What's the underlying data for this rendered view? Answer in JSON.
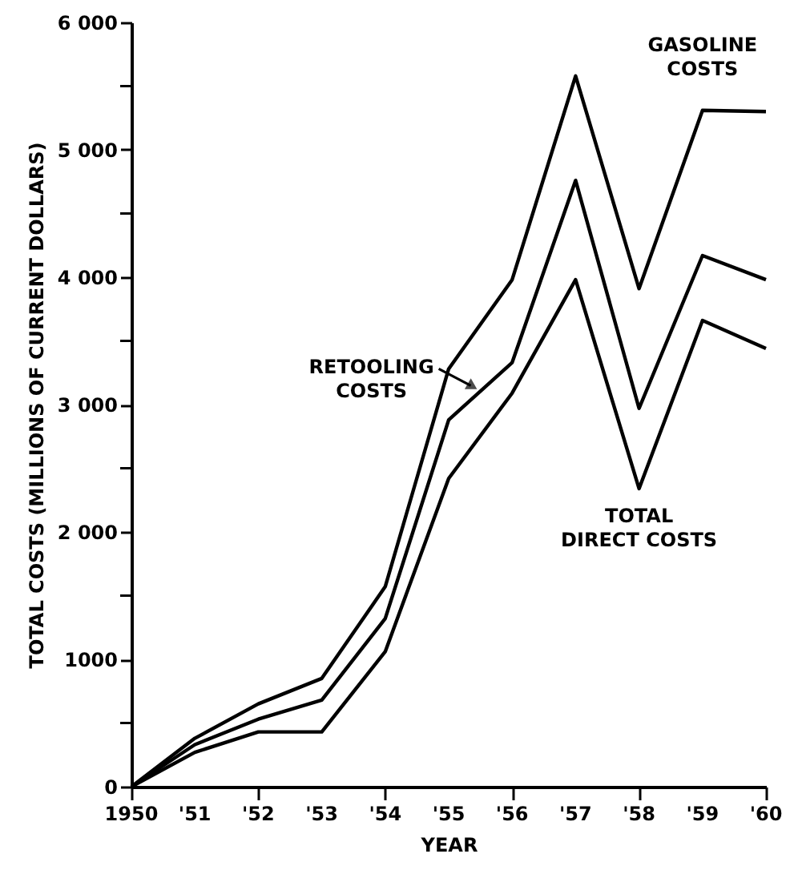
{
  "chart_data": {
    "type": "line",
    "xlabel": "YEAR",
    "ylabel": "TOTAL COSTS (MILLIONS OF CURRENT DOLLARS)",
    "x": [
      1950,
      1951,
      1952,
      1953,
      1954,
      1955,
      1956,
      1957,
      1958,
      1959,
      1960
    ],
    "series": [
      {
        "name": "GASOLINE COSTS",
        "color": "#000000",
        "values": [
          0,
          380,
          650,
          850,
          1570,
          3280,
          3980,
          5580,
          3910,
          5310,
          5300
        ]
      },
      {
        "name": "RETOOLING COSTS",
        "color": "#000000",
        "values": [
          0,
          330,
          530,
          680,
          1320,
          2880,
          3330,
          4760,
          2970,
          4170,
          3980
        ]
      },
      {
        "name": "TOTAL DIRECT COSTS",
        "color": "#000000",
        "values": [
          0,
          270,
          430,
          430,
          1060,
          2420,
          3090,
          3980,
          2340,
          3660,
          3440
        ]
      }
    ],
    "xlim": [
      1950,
      1960
    ],
    "xticks": [
      {
        "value": 1950,
        "label": "1950"
      },
      {
        "value": 1951,
        "label": "'51"
      },
      {
        "value": 1952,
        "label": "'52"
      },
      {
        "value": 1953,
        "label": "'53"
      },
      {
        "value": 1954,
        "label": "'54"
      },
      {
        "value": 1955,
        "label": "'55"
      },
      {
        "value": 1956,
        "label": "'56"
      },
      {
        "value": 1957,
        "label": "'57"
      },
      {
        "value": 1958,
        "label": "'58"
      },
      {
        "value": 1959,
        "label": "'59"
      },
      {
        "value": 1960,
        "label": "'60"
      }
    ],
    "ylim": [
      0,
      6000
    ],
    "yticks": [
      0,
      {
        "value": 500,
        "label": null
      },
      {
        "value": 1000,
        "label": "1000"
      },
      {
        "value": 1500,
        "label": null
      },
      {
        "value": 2000,
        "label": "2 000"
      },
      {
        "value": 2500,
        "label": null
      },
      {
        "value": 3000,
        "label": "3 000"
      },
      {
        "value": 3500,
        "label": null
      },
      {
        "value": 4000,
        "label": "4 000"
      },
      {
        "value": 4500,
        "label": null
      },
      {
        "value": 5000,
        "label": "5 000"
      },
      {
        "value": 5500,
        "label": null
      },
      {
        "value": 6000,
        "label": "6 000"
      }
    ],
    "grid": false,
    "marker": "none",
    "line_style": "solid"
  }
}
